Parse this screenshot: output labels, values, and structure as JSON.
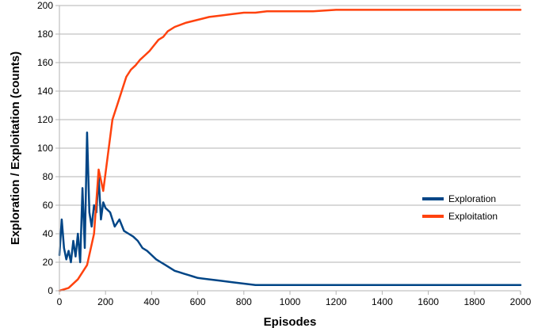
{
  "chart_data": {
    "type": "line",
    "title": "",
    "xlabel": "Episodes",
    "ylabel": "Exploration / Exploitation (counts)",
    "xlim": [
      0,
      2000
    ],
    "ylim": [
      0,
      200
    ],
    "x_ticks": [
      0,
      200,
      400,
      600,
      800,
      1000,
      1200,
      1400,
      1600,
      1800,
      2000
    ],
    "y_ticks": [
      0,
      20,
      40,
      60,
      80,
      100,
      120,
      140,
      160,
      180,
      200
    ],
    "grid": true,
    "legend_position": "right",
    "series": [
      {
        "name": "Exploration",
        "color": "#004586",
        "points": [
          [
            0,
            25
          ],
          [
            10,
            50
          ],
          [
            20,
            30
          ],
          [
            30,
            22
          ],
          [
            40,
            28
          ],
          [
            50,
            20
          ],
          [
            60,
            35
          ],
          [
            70,
            24
          ],
          [
            80,
            40
          ],
          [
            90,
            20
          ],
          [
            100,
            72
          ],
          [
            110,
            30
          ],
          [
            120,
            111
          ],
          [
            130,
            55
          ],
          [
            140,
            45
          ],
          [
            150,
            60
          ],
          [
            160,
            55
          ],
          [
            170,
            80
          ],
          [
            180,
            50
          ],
          [
            190,
            62
          ],
          [
            200,
            58
          ],
          [
            220,
            55
          ],
          [
            240,
            45
          ],
          [
            260,
            50
          ],
          [
            280,
            42
          ],
          [
            300,
            40
          ],
          [
            320,
            38
          ],
          [
            340,
            35
          ],
          [
            360,
            30
          ],
          [
            380,
            28
          ],
          [
            400,
            25
          ],
          [
            420,
            22
          ],
          [
            440,
            20
          ],
          [
            460,
            18
          ],
          [
            480,
            16
          ],
          [
            500,
            14
          ],
          [
            520,
            13
          ],
          [
            540,
            12
          ],
          [
            560,
            11
          ],
          [
            580,
            10
          ],
          [
            600,
            9
          ],
          [
            650,
            8
          ],
          [
            700,
            7
          ],
          [
            750,
            6
          ],
          [
            800,
            5
          ],
          [
            850,
            4
          ],
          [
            900,
            4
          ],
          [
            1000,
            4
          ],
          [
            1100,
            4
          ],
          [
            1200,
            4
          ],
          [
            1300,
            4
          ],
          [
            1400,
            4
          ],
          [
            1500,
            4
          ],
          [
            1600,
            4
          ],
          [
            1700,
            4
          ],
          [
            1800,
            4
          ],
          [
            1900,
            4
          ],
          [
            2000,
            4
          ]
        ]
      },
      {
        "name": "Exploitation",
        "color": "#ff420e",
        "points": [
          [
            0,
            0
          ],
          [
            40,
            2
          ],
          [
            80,
            8
          ],
          [
            120,
            18
          ],
          [
            150,
            40
          ],
          [
            170,
            85
          ],
          [
            190,
            70
          ],
          [
            210,
            95
          ],
          [
            230,
            120
          ],
          [
            250,
            130
          ],
          [
            270,
            140
          ],
          [
            290,
            150
          ],
          [
            310,
            155
          ],
          [
            330,
            158
          ],
          [
            350,
            162
          ],
          [
            370,
            165
          ],
          [
            390,
            168
          ],
          [
            410,
            172
          ],
          [
            430,
            176
          ],
          [
            450,
            178
          ],
          [
            470,
            182
          ],
          [
            500,
            185
          ],
          [
            550,
            188
          ],
          [
            600,
            190
          ],
          [
            650,
            192
          ],
          [
            700,
            193
          ],
          [
            750,
            194
          ],
          [
            800,
            195
          ],
          [
            850,
            195
          ],
          [
            900,
            196
          ],
          [
            1000,
            196
          ],
          [
            1100,
            196
          ],
          [
            1200,
            197
          ],
          [
            1300,
            197
          ],
          [
            1400,
            197
          ],
          [
            1500,
            197
          ],
          [
            1600,
            197
          ],
          [
            1700,
            197
          ],
          [
            1800,
            197
          ],
          [
            1900,
            197
          ],
          [
            2000,
            197
          ]
        ]
      }
    ]
  }
}
